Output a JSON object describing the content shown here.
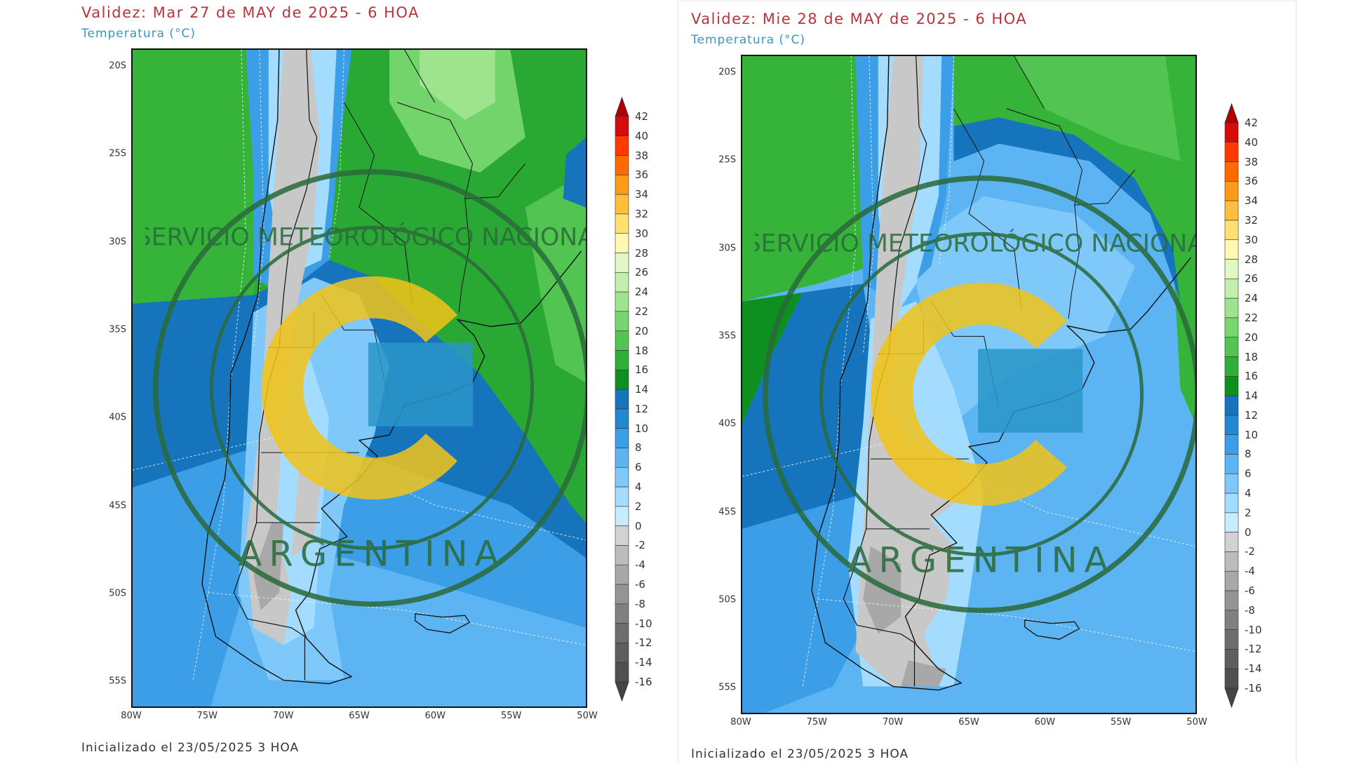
{
  "panels": [
    {
      "title": "Validez: Mar 27 de MAY de 2025 - 6 HOA",
      "subtitle": "Temperatura (°C)",
      "footer": "Inicializado el 23/05/2025 3 HOA",
      "variant": "day1"
    },
    {
      "title": "Validez: Mie 28 de MAY de 2025 - 6 HOA",
      "subtitle": "Temperatura (°C)",
      "footer": "Inicializado el 23/05/2025 3 HOA",
      "variant": "day2"
    }
  ],
  "logo": {
    "top_text": "SERVICIO METEOROLÓGICO NACIONAL",
    "bottom_text": "ARGENTINA"
  },
  "chart_data": {
    "type": "heatmap",
    "lat_labels": [
      "20S",
      "25S",
      "30S",
      "35S",
      "40S",
      "45S",
      "50S",
      "55S"
    ],
    "lat_values": [
      -20,
      -25,
      -30,
      -35,
      -40,
      -45,
      -50,
      -55
    ],
    "lon_labels": [
      "80W",
      "75W",
      "70W",
      "65W",
      "60W",
      "55W",
      "50W"
    ],
    "lon_values": [
      -80,
      -75,
      -70,
      -65,
      -60,
      -55,
      -50
    ],
    "colorbar": {
      "unit": "°C",
      "levels": [
        42,
        40,
        38,
        36,
        34,
        32,
        30,
        28,
        26,
        24,
        22,
        20,
        18,
        16,
        14,
        12,
        10,
        8,
        6,
        4,
        2,
        0,
        -2,
        -4,
        -6,
        -8,
        -10,
        -12,
        -14,
        -16
      ],
      "labels": [
        "42",
        "40",
        "38",
        "36",
        "34",
        "32",
        "30",
        "28",
        "26",
        "24",
        "22",
        "20",
        "18",
        "16",
        "14",
        "12",
        "10",
        "8",
        "6",
        "4",
        "2",
        "0",
        "-2",
        "-4",
        "-6",
        "-8",
        "-10",
        "-12",
        "-14",
        "-16"
      ],
      "colors": [
        "#d40c0c",
        "#ff3a00",
        "#ff6a00",
        "#ff9a18",
        "#ffbe3c",
        "#ffe070",
        "#fff8b0",
        "#e2f8c4",
        "#c2efae",
        "#9ee48e",
        "#78d66e",
        "#52c452",
        "#2fae38",
        "#0e9020",
        "#1674bc",
        "#2288d2",
        "#3c9ee6",
        "#5cb4f2",
        "#7ec8fa",
        "#a4dcff",
        "#c8ecff",
        "#d2d2d2",
        "#bcbcbc",
        "#a8a8a8",
        "#949494",
        "#808080",
        "#6e6e6e",
        "#5e5e5e",
        "#505050"
      ],
      "top_arrow_color": "#b00000",
      "bottom_arrow_color": "#444444"
    }
  }
}
